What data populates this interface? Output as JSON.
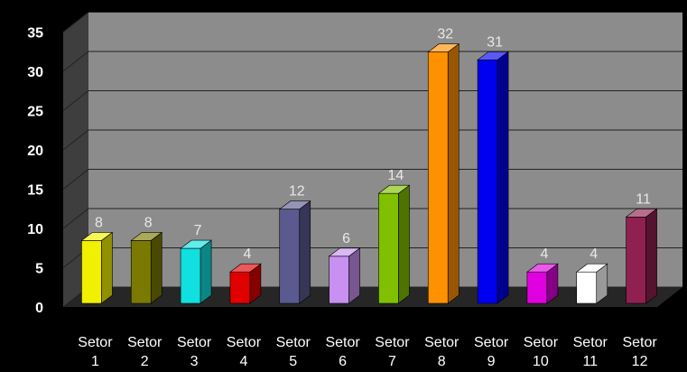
{
  "chart_data": {
    "type": "bar",
    "title": "",
    "xlabel": "",
    "ylabel": "",
    "ylim": [
      0,
      35
    ],
    "yticks": [
      0,
      5,
      10,
      15,
      20,
      25,
      30,
      35
    ],
    "categories": [
      [
        "Setor",
        "1"
      ],
      [
        "Setor",
        "2"
      ],
      [
        "Setor",
        "3"
      ],
      [
        "Setor",
        "4"
      ],
      [
        "Setor",
        "5"
      ],
      [
        "Setor",
        "6"
      ],
      [
        "Setor",
        "7"
      ],
      [
        "Setor",
        "8"
      ],
      [
        "Setor",
        "9"
      ],
      [
        "Setor",
        "10"
      ],
      [
        "Setor",
        "11"
      ],
      [
        "Setor",
        "12"
      ]
    ],
    "values": [
      8,
      8,
      7,
      4,
      12,
      6,
      14,
      32,
      31,
      4,
      4,
      11
    ],
    "bar_colors": [
      "#f0f000",
      "#7a7a00",
      "#10e0e0",
      "#e00000",
      "#5a5a90",
      "#c890f0",
      "#80c000",
      "#ff9000",
      "#0000f0",
      "#e000e0",
      "#ffffff",
      "#902050"
    ],
    "grid": true,
    "style": "3d",
    "background": "#000000",
    "plot_wall": "#8c8c8c"
  }
}
